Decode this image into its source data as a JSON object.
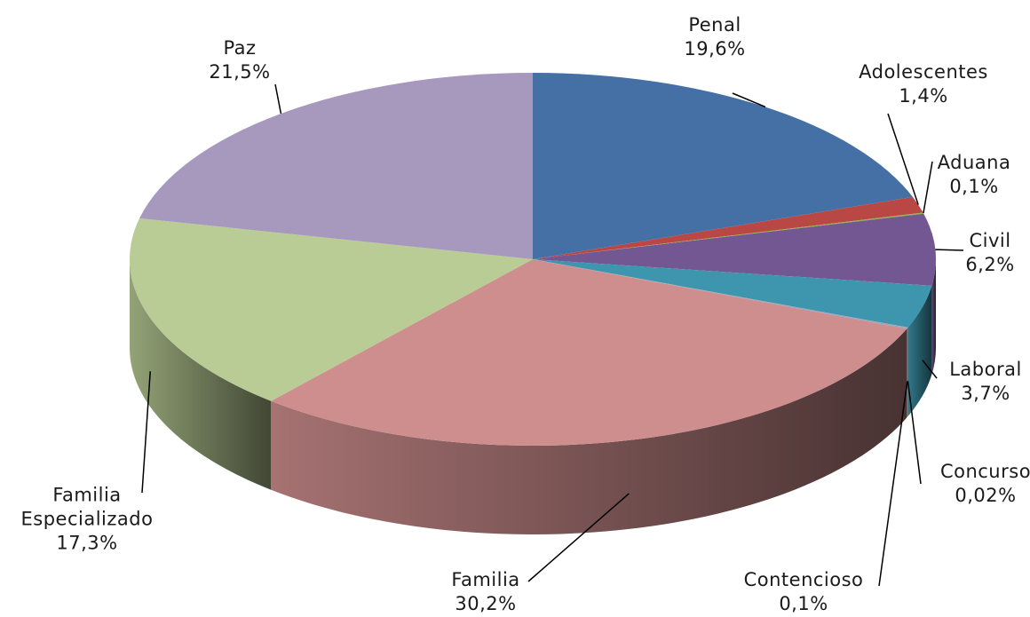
{
  "chart_data": {
    "type": "pie",
    "categories": [
      "Penal",
      "Adolescentes",
      "Aduana",
      "Civil",
      "Laboral",
      "Concurso",
      "Contencioso",
      "Familia",
      "Familia Especializado",
      "Paz"
    ],
    "values": [
      19.6,
      1.4,
      0.1,
      6.2,
      3.7,
      0.02,
      0.1,
      30.2,
      17.3,
      21.5
    ],
    "value_labels": [
      "19,6%",
      "1,4%",
      "0,1%",
      "6,2%",
      "3,7%",
      "0,02%",
      "0,1%",
      "30,2%",
      "17,3%",
      "21,5%"
    ],
    "colors": [
      "#4570a6",
      "#b94744",
      "#93b04f",
      "#735792",
      "#3d96ae",
      "#e98d3f",
      "#8ea5cc",
      "#cf8e8e",
      "#b9cc95",
      "#a798be"
    ]
  }
}
